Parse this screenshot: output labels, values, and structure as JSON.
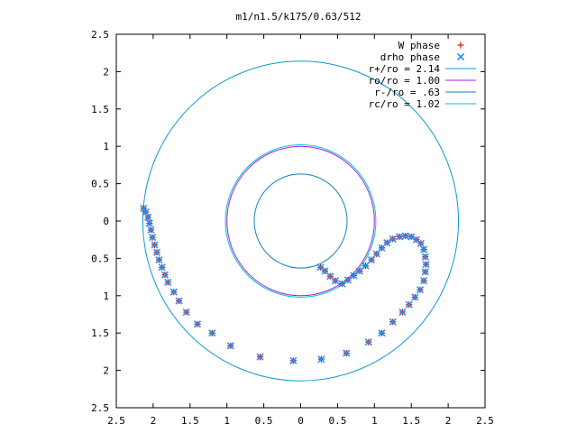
{
  "chart_data": {
    "type": "scatter",
    "title": "m1/n1.5/k175/0.63/512",
    "xlabel": "",
    "ylabel": "",
    "xlim": [
      -2.5,
      2.5
    ],
    "ylim": [
      -2.5,
      2.5
    ],
    "x_tick_labels": [
      "2.5",
      "2",
      "1.5",
      "1",
      "0.5",
      "0",
      "0.5",
      "1",
      "1.5",
      "2",
      "2.5"
    ],
    "y_tick_labels": [
      "2.5",
      "2",
      "1.5",
      "1",
      "0.5",
      "0",
      "0.5",
      "1",
      "1.5",
      "2",
      "2.5"
    ],
    "x_ticks": [
      -2.5,
      -2,
      -1.5,
      -1,
      -0.5,
      0,
      0.5,
      1,
      1.5,
      2,
      2.5
    ],
    "y_ticks": [
      2.5,
      2,
      1.5,
      1,
      0.5,
      0,
      -0.5,
      -1,
      -1.5,
      -2,
      -2.5
    ],
    "grid": false,
    "legend_position": "top-right",
    "circles": [
      {
        "name": "r+/ro = 2.14",
        "radius": 2.14,
        "color": "#0a9bd0"
      },
      {
        "name": "ro/ro = 1.00",
        "radius": 1.0,
        "color": "#a020f0"
      },
      {
        "name": "r-/ro = .63",
        "radius": 0.63,
        "color": "#1a7fbf"
      },
      {
        "name": "rc/ro = 1.02",
        "radius": 1.02,
        "color": "#00c8c8"
      }
    ],
    "series": [
      {
        "name": "W phase",
        "marker": "+",
        "color": "#d01010",
        "points": [
          [
            -2.13,
            0.17
          ],
          [
            -2.1,
            0.12
          ],
          [
            -2.07,
            0.05
          ],
          [
            -2.05,
            -0.03
          ],
          [
            -2.03,
            -0.12
          ],
          [
            -2.01,
            -0.22
          ],
          [
            -1.98,
            -0.32
          ],
          [
            -1.95,
            -0.42
          ],
          [
            -1.92,
            -0.52
          ],
          [
            -1.88,
            -0.62
          ],
          [
            -1.84,
            -0.72
          ],
          [
            -1.8,
            -0.82
          ],
          [
            -1.72,
            -0.95
          ],
          [
            -1.65,
            -1.07
          ],
          [
            -1.55,
            -1.22
          ],
          [
            -1.4,
            -1.38
          ],
          [
            -1.2,
            -1.5
          ],
          [
            -0.95,
            -1.67
          ],
          [
            -0.55,
            -1.82
          ],
          [
            -0.1,
            -1.87
          ],
          [
            0.28,
            -1.85
          ],
          [
            0.62,
            -1.77
          ],
          [
            0.92,
            -1.62
          ],
          [
            1.1,
            -1.5
          ],
          [
            1.25,
            -1.35
          ],
          [
            1.38,
            -1.22
          ],
          [
            1.47,
            -1.12
          ],
          [
            1.55,
            -1.02
          ],
          [
            1.62,
            -0.92
          ],
          [
            1.67,
            -0.8
          ],
          [
            1.69,
            -0.68
          ],
          [
            1.7,
            -0.58
          ],
          [
            1.69,
            -0.48
          ],
          [
            1.67,
            -0.38
          ],
          [
            1.63,
            -0.3
          ],
          [
            1.57,
            -0.25
          ],
          [
            1.5,
            -0.21
          ],
          [
            1.42,
            -0.2
          ],
          [
            1.34,
            -0.21
          ],
          [
            1.25,
            -0.24
          ],
          [
            1.17,
            -0.29
          ],
          [
            1.1,
            -0.36
          ],
          [
            1.03,
            -0.44
          ],
          [
            0.96,
            -0.52
          ],
          [
            0.88,
            -0.6
          ],
          [
            0.8,
            -0.67
          ],
          [
            0.72,
            -0.73
          ],
          [
            0.64,
            -0.79
          ],
          [
            0.56,
            -0.84
          ],
          [
            0.47,
            -0.8
          ],
          [
            0.4,
            -0.74
          ],
          [
            0.33,
            -0.67
          ],
          [
            0.27,
            -0.62
          ]
        ]
      },
      {
        "name": "drho phase",
        "marker": "x",
        "color": "#1e90ff",
        "points": [
          [
            -2.13,
            0.17
          ],
          [
            -2.1,
            0.12
          ],
          [
            -2.07,
            0.05
          ],
          [
            -2.05,
            -0.03
          ],
          [
            -2.03,
            -0.12
          ],
          [
            -2.01,
            -0.22
          ],
          [
            -1.98,
            -0.32
          ],
          [
            -1.95,
            -0.42
          ],
          [
            -1.92,
            -0.52
          ],
          [
            -1.88,
            -0.62
          ],
          [
            -1.84,
            -0.72
          ],
          [
            -1.8,
            -0.82
          ],
          [
            -1.72,
            -0.95
          ],
          [
            -1.65,
            -1.07
          ],
          [
            -1.55,
            -1.22
          ],
          [
            -1.4,
            -1.38
          ],
          [
            -1.2,
            -1.5
          ],
          [
            -0.95,
            -1.67
          ],
          [
            -0.55,
            -1.82
          ],
          [
            -0.1,
            -1.87
          ],
          [
            0.28,
            -1.85
          ],
          [
            0.62,
            -1.77
          ],
          [
            0.92,
            -1.62
          ],
          [
            1.1,
            -1.5
          ],
          [
            1.25,
            -1.35
          ],
          [
            1.38,
            -1.22
          ],
          [
            1.47,
            -1.12
          ],
          [
            1.55,
            -1.02
          ],
          [
            1.62,
            -0.92
          ],
          [
            1.67,
            -0.8
          ],
          [
            1.69,
            -0.68
          ],
          [
            1.7,
            -0.58
          ],
          [
            1.69,
            -0.48
          ],
          [
            1.67,
            -0.38
          ],
          [
            1.63,
            -0.3
          ],
          [
            1.57,
            -0.25
          ],
          [
            1.5,
            -0.21
          ],
          [
            1.42,
            -0.2
          ],
          [
            1.34,
            -0.21
          ],
          [
            1.25,
            -0.24
          ],
          [
            1.17,
            -0.29
          ],
          [
            1.1,
            -0.36
          ],
          [
            1.03,
            -0.44
          ],
          [
            0.96,
            -0.52
          ],
          [
            0.88,
            -0.6
          ],
          [
            0.8,
            -0.67
          ],
          [
            0.72,
            -0.73
          ],
          [
            0.64,
            -0.79
          ],
          [
            0.56,
            -0.84
          ],
          [
            0.47,
            -0.8
          ],
          [
            0.4,
            -0.74
          ],
          [
            0.33,
            -0.67
          ],
          [
            0.27,
            -0.62
          ]
        ]
      }
    ]
  }
}
